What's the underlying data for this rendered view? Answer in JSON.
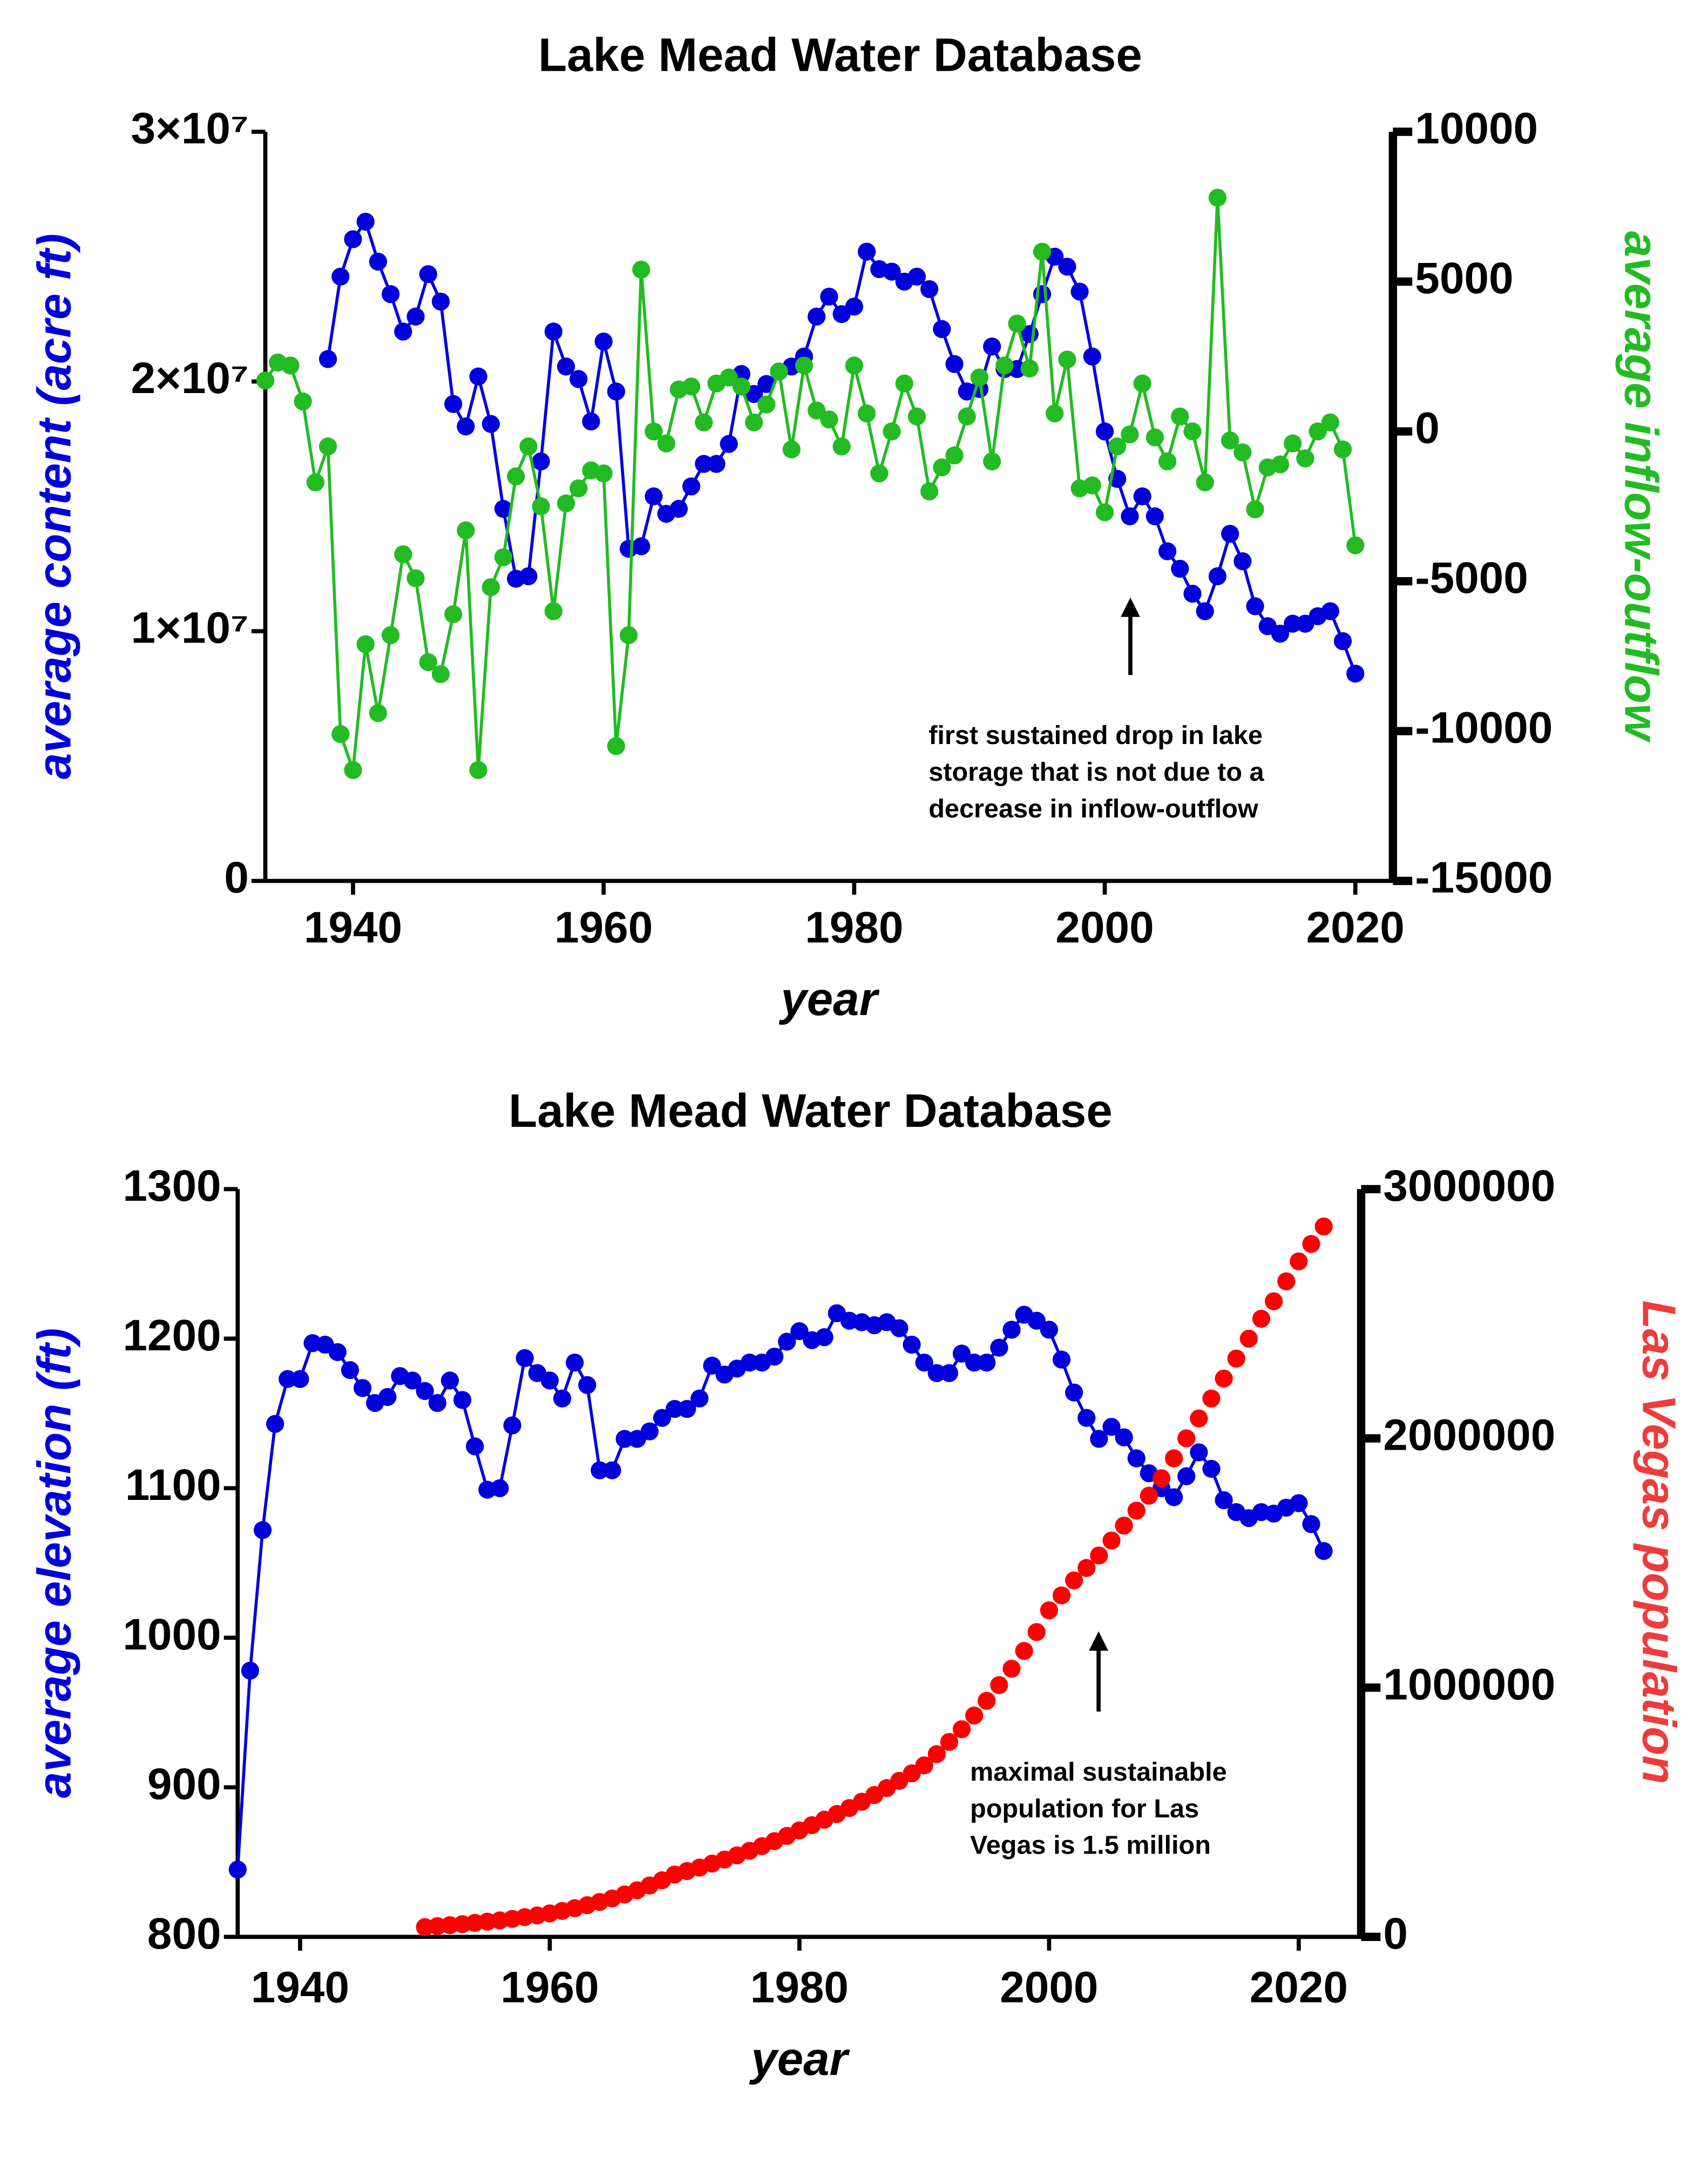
{
  "chart_data": [
    {
      "type": "line",
      "title": "Lake Mead Water Database",
      "x_label": "year",
      "y_label": "average content (acre ft)",
      "y2_label": "average inflow-outflow",
      "y_label_color": "#0000dd",
      "y2_label_color": "#22bb22",
      "annotation": [
        "first sustained drop in lake",
        "storage that is not due to a",
        "decrease in inflow-outflow"
      ],
      "xlim": [
        1933,
        2023
      ],
      "xticks": [
        1940,
        1960,
        1980,
        2000,
        2020
      ],
      "ylim": [
        0,
        30000000
      ],
      "yticks": [
        0,
        {
          "value": 10000000,
          "label": "1×10⁷"
        },
        {
          "value": 20000000,
          "label": "2×10⁷"
        },
        {
          "value": 30000000,
          "label": "3×10⁷"
        }
      ],
      "y2lim": [
        -15000,
        10000
      ],
      "y2ticks": [
        -15000,
        -10000,
        -5000,
        0,
        5000,
        10000
      ],
      "x": [
        1933,
        1934,
        1935,
        1936,
        1937,
        1938,
        1939,
        1940,
        1941,
        1942,
        1943,
        1944,
        1945,
        1946,
        1947,
        1948,
        1949,
        1950,
        1951,
        1952,
        1953,
        1954,
        1955,
        1956,
        1957,
        1958,
        1959,
        1960,
        1961,
        1962,
        1963,
        1964,
        1965,
        1966,
        1967,
        1968,
        1969,
        1970,
        1971,
        1972,
        1973,
        1974,
        1975,
        1976,
        1977,
        1978,
        1979,
        1980,
        1981,
        1982,
        1983,
        1984,
        1985,
        1986,
        1987,
        1988,
        1989,
        1990,
        1991,
        1992,
        1993,
        1994,
        1995,
        1996,
        1997,
        1998,
        1999,
        2000,
        2001,
        2002,
        2003,
        2004,
        2005,
        2006,
        2007,
        2008,
        2009,
        2010,
        2011,
        2012,
        2013,
        2014,
        2015,
        2016,
        2017,
        2018,
        2019,
        2020
      ],
      "series": [
        {
          "name": "average content",
          "color": "#0000dd",
          "axis": "y",
          "line": true,
          "values": [
            null,
            null,
            null,
            null,
            null,
            20900000,
            24200000,
            25700000,
            26400000,
            24800000,
            23500000,
            22000000,
            22600000,
            24300000,
            23200000,
            19100000,
            18200000,
            20200000,
            18300000,
            14900000,
            12100000,
            12200000,
            16800000,
            22000000,
            20600000,
            20100000,
            18400000,
            21600000,
            19600000,
            13300000,
            13400000,
            15400000,
            14700000,
            14900000,
            15800000,
            16700000,
            16700000,
            17500000,
            20300000,
            19500000,
            19900000,
            20400000,
            20600000,
            21000000,
            22600000,
            23400000,
            22700000,
            23000000,
            25200000,
            24500000,
            24400000,
            24000000,
            24200000,
            23700000,
            22100000,
            20700000,
            19600000,
            19700000,
            21400000,
            20500000,
            20500000,
            21900000,
            23500000,
            25000000,
            24600000,
            23600000,
            21000000,
            18000000,
            16100000,
            14600000,
            15400000,
            14600000,
            13200000,
            12500000,
            11500000,
            10800000,
            12200000,
            13900000,
            12800000,
            11000000,
            10200000,
            9900000,
            10300000,
            10300000,
            10600000,
            10800000,
            9600000,
            8300000
          ]
        },
        {
          "name": "average inflow-outflow",
          "color": "#22bb22",
          "axis": "y2",
          "line": true,
          "values": [
            1700,
            2300,
            2200,
            1000,
            -1700,
            -500,
            -10100,
            -11300,
            -7100,
            -9400,
            -6800,
            -4100,
            -4900,
            -7700,
            -8100,
            -6100,
            -3300,
            -11300,
            -5200,
            -4200,
            -1500,
            -500,
            -2500,
            -6000,
            -2400,
            -1900,
            -1300,
            -1400,
            -10500,
            -6800,
            5400,
            0,
            -400,
            1400,
            1500,
            300,
            1600,
            1800,
            1500,
            300,
            900,
            2000,
            -600,
            2200,
            700,
            400,
            -500,
            2200,
            600,
            -1400,
            0,
            1600,
            500,
            -2000,
            -1200,
            -800,
            500,
            1800,
            -1000,
            2200,
            3600,
            2100,
            6000,
            600,
            2400,
            -1900,
            -1800,
            -2700,
            -500,
            -100,
            1600,
            -200,
            -1000,
            500,
            0,
            -1700,
            7800,
            -300,
            -700,
            -2600,
            -1200,
            -1100,
            -400,
            -900,
            0,
            300,
            -600,
            -3800
          ]
        }
      ]
    },
    {
      "type": "line",
      "title": "Lake Mead Water Database",
      "x_label": "year",
      "y_label": "average elevation (ft)",
      "y2_label": "Las Vegas population",
      "y_label_color": "#0000dd",
      "y2_label_color": "#ee3b3b",
      "annotation": [
        "maximal sustainable",
        "population for Las",
        "Vegas is 1.5 million"
      ],
      "xlim": [
        1935,
        2025
      ],
      "xticks": [
        1940,
        1960,
        1980,
        2000,
        2020
      ],
      "ylim": [
        800,
        1300
      ],
      "yticks": [
        800,
        900,
        1000,
        1100,
        1200,
        1300
      ],
      "y2lim": [
        0,
        3000000
      ],
      "y2ticks": [
        0,
        1000000,
        2000000,
        3000000
      ],
      "x": [
        1935,
        1936,
        1937,
        1938,
        1939,
        1940,
        1941,
        1942,
        1943,
        1944,
        1945,
        1946,
        1947,
        1948,
        1949,
        1950,
        1951,
        1952,
        1953,
        1954,
        1955,
        1956,
        1957,
        1958,
        1959,
        1960,
        1961,
        1962,
        1963,
        1964,
        1965,
        1966,
        1967,
        1968,
        1969,
        1970,
        1971,
        1972,
        1973,
        1974,
        1975,
        1976,
        1977,
        1978,
        1979,
        1980,
        1981,
        1982,
        1983,
        1984,
        1985,
        1986,
        1987,
        1988,
        1989,
        1990,
        1991,
        1992,
        1993,
        1994,
        1995,
        1996,
        1997,
        1998,
        1999,
        2000,
        2001,
        2002,
        2003,
        2004,
        2005,
        2006,
        2007,
        2008,
        2009,
        2010,
        2011,
        2012,
        2013,
        2014,
        2015,
        2016,
        2017,
        2018,
        2019,
        2020,
        2021,
        2022
      ],
      "series": [
        {
          "name": "average elevation",
          "color": "#0000dd",
          "axis": "y",
          "line": true,
          "values": [
            845,
            978,
            1072,
            1143,
            1173,
            1173,
            1197,
            1196,
            1191,
            1179,
            1167,
            1157,
            1161,
            1175,
            1172,
            1165,
            1157,
            1172,
            1159,
            1128,
            1099,
            1100,
            1142,
            1187,
            1177,
            1172,
            1160,
            1184,
            1169,
            1112,
            1112,
            1133,
            1133,
            1138,
            1147,
            1153,
            1153,
            1160,
            1182,
            1176,
            1180,
            1184,
            1184,
            1188,
            1198,
            1205,
            1199,
            1201,
            1217,
            1212,
            1211,
            1209,
            1211,
            1207,
            1196,
            1184,
            1177,
            1177,
            1190,
            1184,
            1184,
            1194,
            1206,
            1216,
            1212,
            1206,
            1186,
            1164,
            1147,
            1133,
            1141,
            1134,
            1120,
            1110,
            1100,
            1094,
            1108,
            1124,
            1113,
            1092,
            1084,
            1080,
            1084,
            1083,
            1087,
            1090,
            1076,
            1058
          ]
        },
        {
          "name": "Las Vegas population",
          "color": "#ff0000",
          "axis": "y2",
          "line": false,
          "values": [
            null,
            null,
            null,
            null,
            null,
            null,
            null,
            null,
            null,
            null,
            null,
            null,
            null,
            null,
            null,
            39000,
            43000,
            47000,
            51000,
            56000,
            61000,
            66000,
            72000,
            79000,
            86000,
            94000,
            104000,
            115000,
            127000,
            140000,
            154000,
            170000,
            187000,
            206000,
            227000,
            250000,
            264000,
            278000,
            294000,
            310000,
            327000,
            345000,
            364000,
            384000,
            405000,
            427000,
            448000,
            470000,
            493000,
            517000,
            542000,
            569000,
            597000,
            626000,
            656000,
            688000,
            733000,
            782000,
            833000,
            888000,
            947000,
            1010000,
            1076000,
            1147000,
            1223000,
            1310000,
            1370000,
            1430000,
            1480000,
            1530000,
            1590000,
            1650000,
            1710000,
            1770000,
            1840000,
            1920000,
            2000000,
            2080000,
            2160000,
            2240000,
            2320000,
            2400000,
            2480000,
            2550000,
            2630000,
            2710000,
            2780000,
            2850000
          ]
        }
      ]
    }
  ]
}
